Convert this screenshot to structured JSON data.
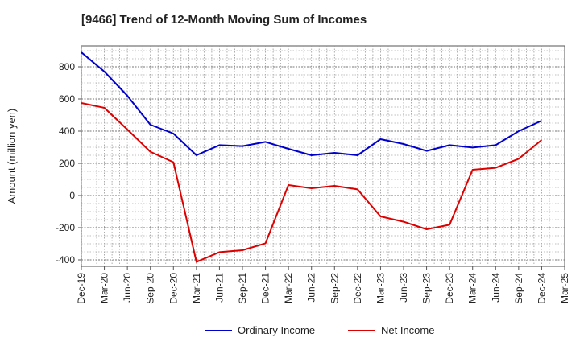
{
  "chart_data": {
    "type": "line",
    "title": "[9466]  Trend of 12-Month Moving Sum of Incomes",
    "xlabel": "",
    "ylabel": "Amount (million yen)",
    "ylim": [
      -440,
      930
    ],
    "y_ticks": [
      -400,
      -200,
      0,
      200,
      400,
      600,
      800
    ],
    "y_tick_labels": [
      "-400",
      "-200",
      "0",
      "200",
      "400",
      "600",
      "800"
    ],
    "categories": [
      "Dec-19",
      "Mar-20",
      "Jun-20",
      "Sep-20",
      "Dec-20",
      "Mar-21",
      "Jun-21",
      "Sep-21",
      "Dec-21",
      "Mar-22",
      "Jun-22",
      "Sep-22",
      "Dec-22",
      "Mar-23",
      "Jun-23",
      "Sep-23",
      "Dec-23",
      "Mar-24",
      "Jun-24",
      "Sep-24",
      "Dec-24",
      "Mar-25"
    ],
    "grid": true,
    "legend_position": "bottom",
    "series": [
      {
        "name": "Ordinary Income",
        "color": "#0000cc",
        "values": [
          890,
          770,
          620,
          440,
          385,
          250,
          313,
          307,
          333,
          290,
          250,
          265,
          250,
          350,
          320,
          277,
          313,
          298,
          313,
          400,
          465,
          null
        ]
      },
      {
        "name": "Net Income",
        "color": "#dd0000",
        "values": [
          575,
          545,
          410,
          272,
          207,
          -413,
          -352,
          -340,
          -297,
          65,
          45,
          60,
          38,
          -130,
          -163,
          -210,
          -182,
          160,
          172,
          228,
          345,
          null
        ]
      }
    ]
  }
}
